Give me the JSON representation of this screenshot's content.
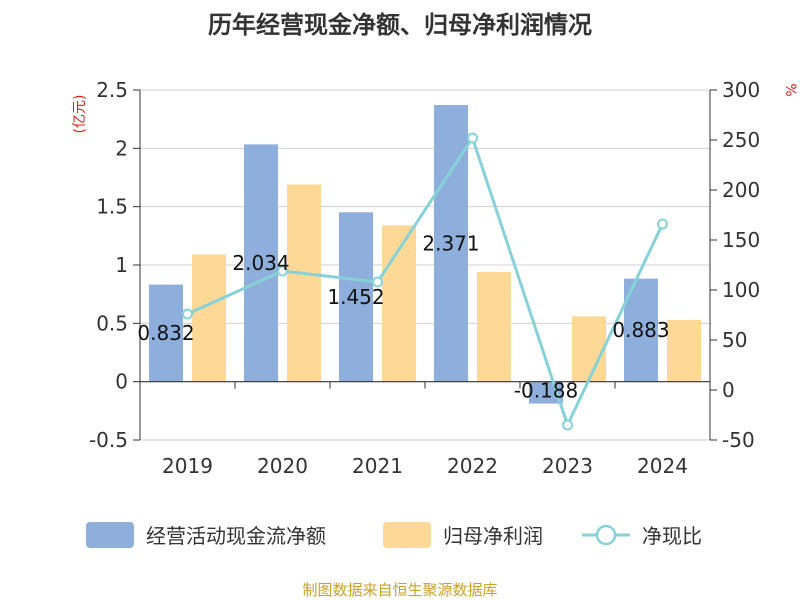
{
  "title": "历年经营现金净额、归母净利润情况",
  "source": "制图数据来自恒生聚源数据库",
  "chart_data": {
    "type": "bar",
    "title": "历年经营现金净额、归母净利润情况",
    "categories": [
      "2019",
      "2020",
      "2021",
      "2022",
      "2023",
      "2024"
    ],
    "left_axis": {
      "unit": "(亿元)",
      "min": -0.5,
      "max": 2.5,
      "ticks": [
        "-0.5",
        "0",
        "0.5",
        "1",
        "1.5",
        "2",
        "2.5"
      ]
    },
    "right_axis": {
      "unit": "%",
      "min": -50,
      "max": 300,
      "ticks": [
        "-50",
        "0",
        "50",
        "100",
        "150",
        "200",
        "250",
        "300"
      ]
    },
    "series": [
      {
        "name": "经营活动现金流净额",
        "type": "bar",
        "axis": "left",
        "color": "#8eaedb",
        "values": [
          0.832,
          2.034,
          1.452,
          2.371,
          -0.188,
          0.883
        ],
        "labels": [
          "0.832",
          "2.034",
          "1.452",
          "2.371",
          "-0.188",
          "0.883"
        ]
      },
      {
        "name": "归母净利润",
        "type": "bar",
        "axis": "left",
        "color": "#fdd897",
        "values": [
          1.09,
          1.69,
          1.34,
          0.94,
          0.56,
          0.53
        ]
      },
      {
        "name": "净现比",
        "type": "line",
        "axis": "right",
        "color": "#86d2d8",
        "values": [
          76,
          119,
          108,
          252,
          -35,
          166
        ]
      }
    ],
    "grid": true,
    "legend": "bottom"
  }
}
